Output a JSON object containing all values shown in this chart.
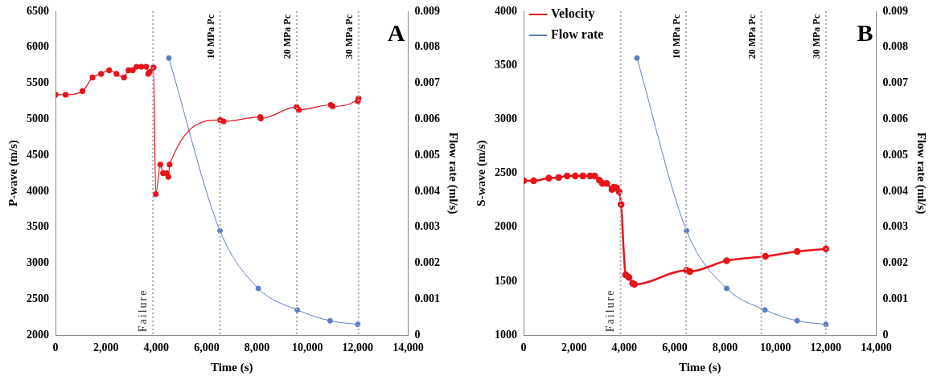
{
  "chart_data": [
    {
      "type": "line",
      "xlabel": "Time (s)",
      "ylabel": "P-wave (m/s)",
      "y2label": "Flow rate (ml/s)",
      "annotations": [
        "A"
      ],
      "legend": false,
      "grid": false,
      "marker": "circle",
      "xlim": [
        0,
        14000
      ],
      "xticks": [
        0,
        {
          "value": 2000,
          "label": "2,000"
        },
        {
          "value": 4000,
          "label": "4,000"
        },
        {
          "value": 6000,
          "label": "6,000"
        },
        {
          "value": 8000,
          "label": "8,000"
        },
        {
          "value": 10000,
          "label": "10,000"
        },
        {
          "value": 12000,
          "label": "12,000"
        },
        {
          "value": 14000,
          "label": "14,000"
        }
      ],
      "ylim": [
        2000,
        6500
      ],
      "yticks": [
        2000,
        2500,
        3000,
        3500,
        4000,
        4500,
        5000,
        5500,
        6000,
        6500
      ],
      "y2lim": [
        0,
        0.009
      ],
      "y2ticks": [
        0,
        0.001,
        0.002,
        0.003,
        0.004,
        0.005,
        0.006,
        0.007,
        0.008,
        0.009
      ],
      "ref_lines": [
        {
          "axis": "x",
          "value": 3870,
          "label": "Failure",
          "color": "#aaaaaa",
          "line_style": "dotted"
        },
        {
          "axis": "x",
          "value": 6530,
          "label": "10 MPa Pc",
          "color": "#aaaaaa",
          "line_style": "dotted"
        },
        {
          "axis": "x",
          "value": 9580,
          "label": "20 MPa Pc",
          "color": "#aaaaaa",
          "line_style": "dotted"
        },
        {
          "axis": "x",
          "value": 12030,
          "label": "30 MPa Pc",
          "color": "#aaaaaa",
          "line_style": "dotted"
        }
      ],
      "series": [
        {
          "color": "#e8141b",
          "x": [
            0,
            400,
            1070,
            1470,
            1810,
            2130,
            2420,
            2720,
            2900,
            3070,
            3220,
            3410,
            3600,
            3680,
            3760,
            3890,
            3980,
            4160,
            4270,
            4410,
            4480,
            4530,
            6540,
            6670,
            8130,
            8150,
            9570,
            9660,
            10930,
            11000,
            12030,
            12000
          ],
          "values": [
            5340,
            5340,
            5390,
            5580,
            5630,
            5680,
            5630,
            5580,
            5680,
            5680,
            5730,
            5730,
            5730,
            5630,
            5660,
            5720,
            3960,
            4370,
            4250,
            4250,
            4200,
            4370,
            4990,
            4970,
            5030,
            5010,
            5170,
            5130,
            5200,
            5180,
            5290,
            5250
          ]
        },
        {
          "color": "#5b7fc0",
          "axis": "y2",
          "x": [
            4500,
            6530,
            8050,
            9600,
            10900,
            12000
          ],
          "values": [
            0.0077,
            0.0029,
            0.0013,
            0.0007,
            0.0004,
            0.0003
          ]
        }
      ]
    },
    {
      "type": "line",
      "xlabel": "Time (s)",
      "ylabel": "S-wave (m/s)",
      "y2label": "Flow rate (ml/s)",
      "annotations": [
        "B"
      ],
      "legend": "top left",
      "grid": false,
      "marker": "circle",
      "xlim": [
        0,
        14000
      ],
      "xticks": [
        0,
        {
          "value": 2000,
          "label": "2,000"
        },
        {
          "value": 4000,
          "label": "4,000"
        },
        {
          "value": 6000,
          "label": "6,000"
        },
        {
          "value": 8000,
          "label": "8,000"
        },
        {
          "value": 10000,
          "label": "10,000"
        },
        {
          "value": 12000,
          "label": "12,000"
        },
        {
          "value": 14000,
          "label": "14,000"
        }
      ],
      "ylim": [
        1000,
        4000
      ],
      "yticks": [
        1000,
        1500,
        2000,
        2500,
        3000,
        3500,
        4000
      ],
      "y2lim": [
        0,
        0.009
      ],
      "y2ticks": [
        0,
        0.001,
        0.002,
        0.003,
        0.004,
        0.005,
        0.006,
        0.007,
        0.008,
        0.009
      ],
      "ref_lines": [
        {
          "axis": "x",
          "value": 3850,
          "label": "Failure",
          "color": "#aaaaaa",
          "line_style": "dotted"
        },
        {
          "axis": "x",
          "value": 6450,
          "label": "10 MPa Pc",
          "color": "#aaaaaa",
          "line_style": "dotted"
        },
        {
          "axis": "x",
          "value": 9440,
          "label": "20 MPa Pc",
          "color": "#aaaaaa",
          "line_style": "dotted"
        },
        {
          "axis": "x",
          "value": 12000,
          "label": "30 MPa Pc",
          "color": "#aaaaaa",
          "line_style": "dotted"
        }
      ],
      "series": [
        {
          "name": "Velocity",
          "color": "#e8141b",
          "x": [
            0,
            400,
            1000,
            1390,
            1730,
            2050,
            2350,
            2640,
            2820,
            3010,
            3130,
            3300,
            3510,
            3580,
            3690,
            3790,
            3870,
            4050,
            4180,
            4330,
            4400,
            6475,
            6600,
            8060,
            9600,
            10860,
            12000
          ],
          "values": [
            2430,
            2430,
            2455,
            2460,
            2475,
            2475,
            2475,
            2475,
            2475,
            2435,
            2405,
            2405,
            2350,
            2370,
            2365,
            2330,
            2210,
            1560,
            1535,
            1480,
            1470,
            1600,
            1590,
            1690,
            1730,
            1775,
            1800
          ]
        },
        {
          "name": "Flow rate",
          "color": "#5b7fc0",
          "axis": "y2",
          "x": [
            4500,
            6470,
            8060,
            9580,
            10860,
            12000
          ],
          "values": [
            0.0077,
            0.0029,
            0.0013,
            0.0007,
            0.0004,
            0.0003
          ]
        }
      ]
    }
  ]
}
